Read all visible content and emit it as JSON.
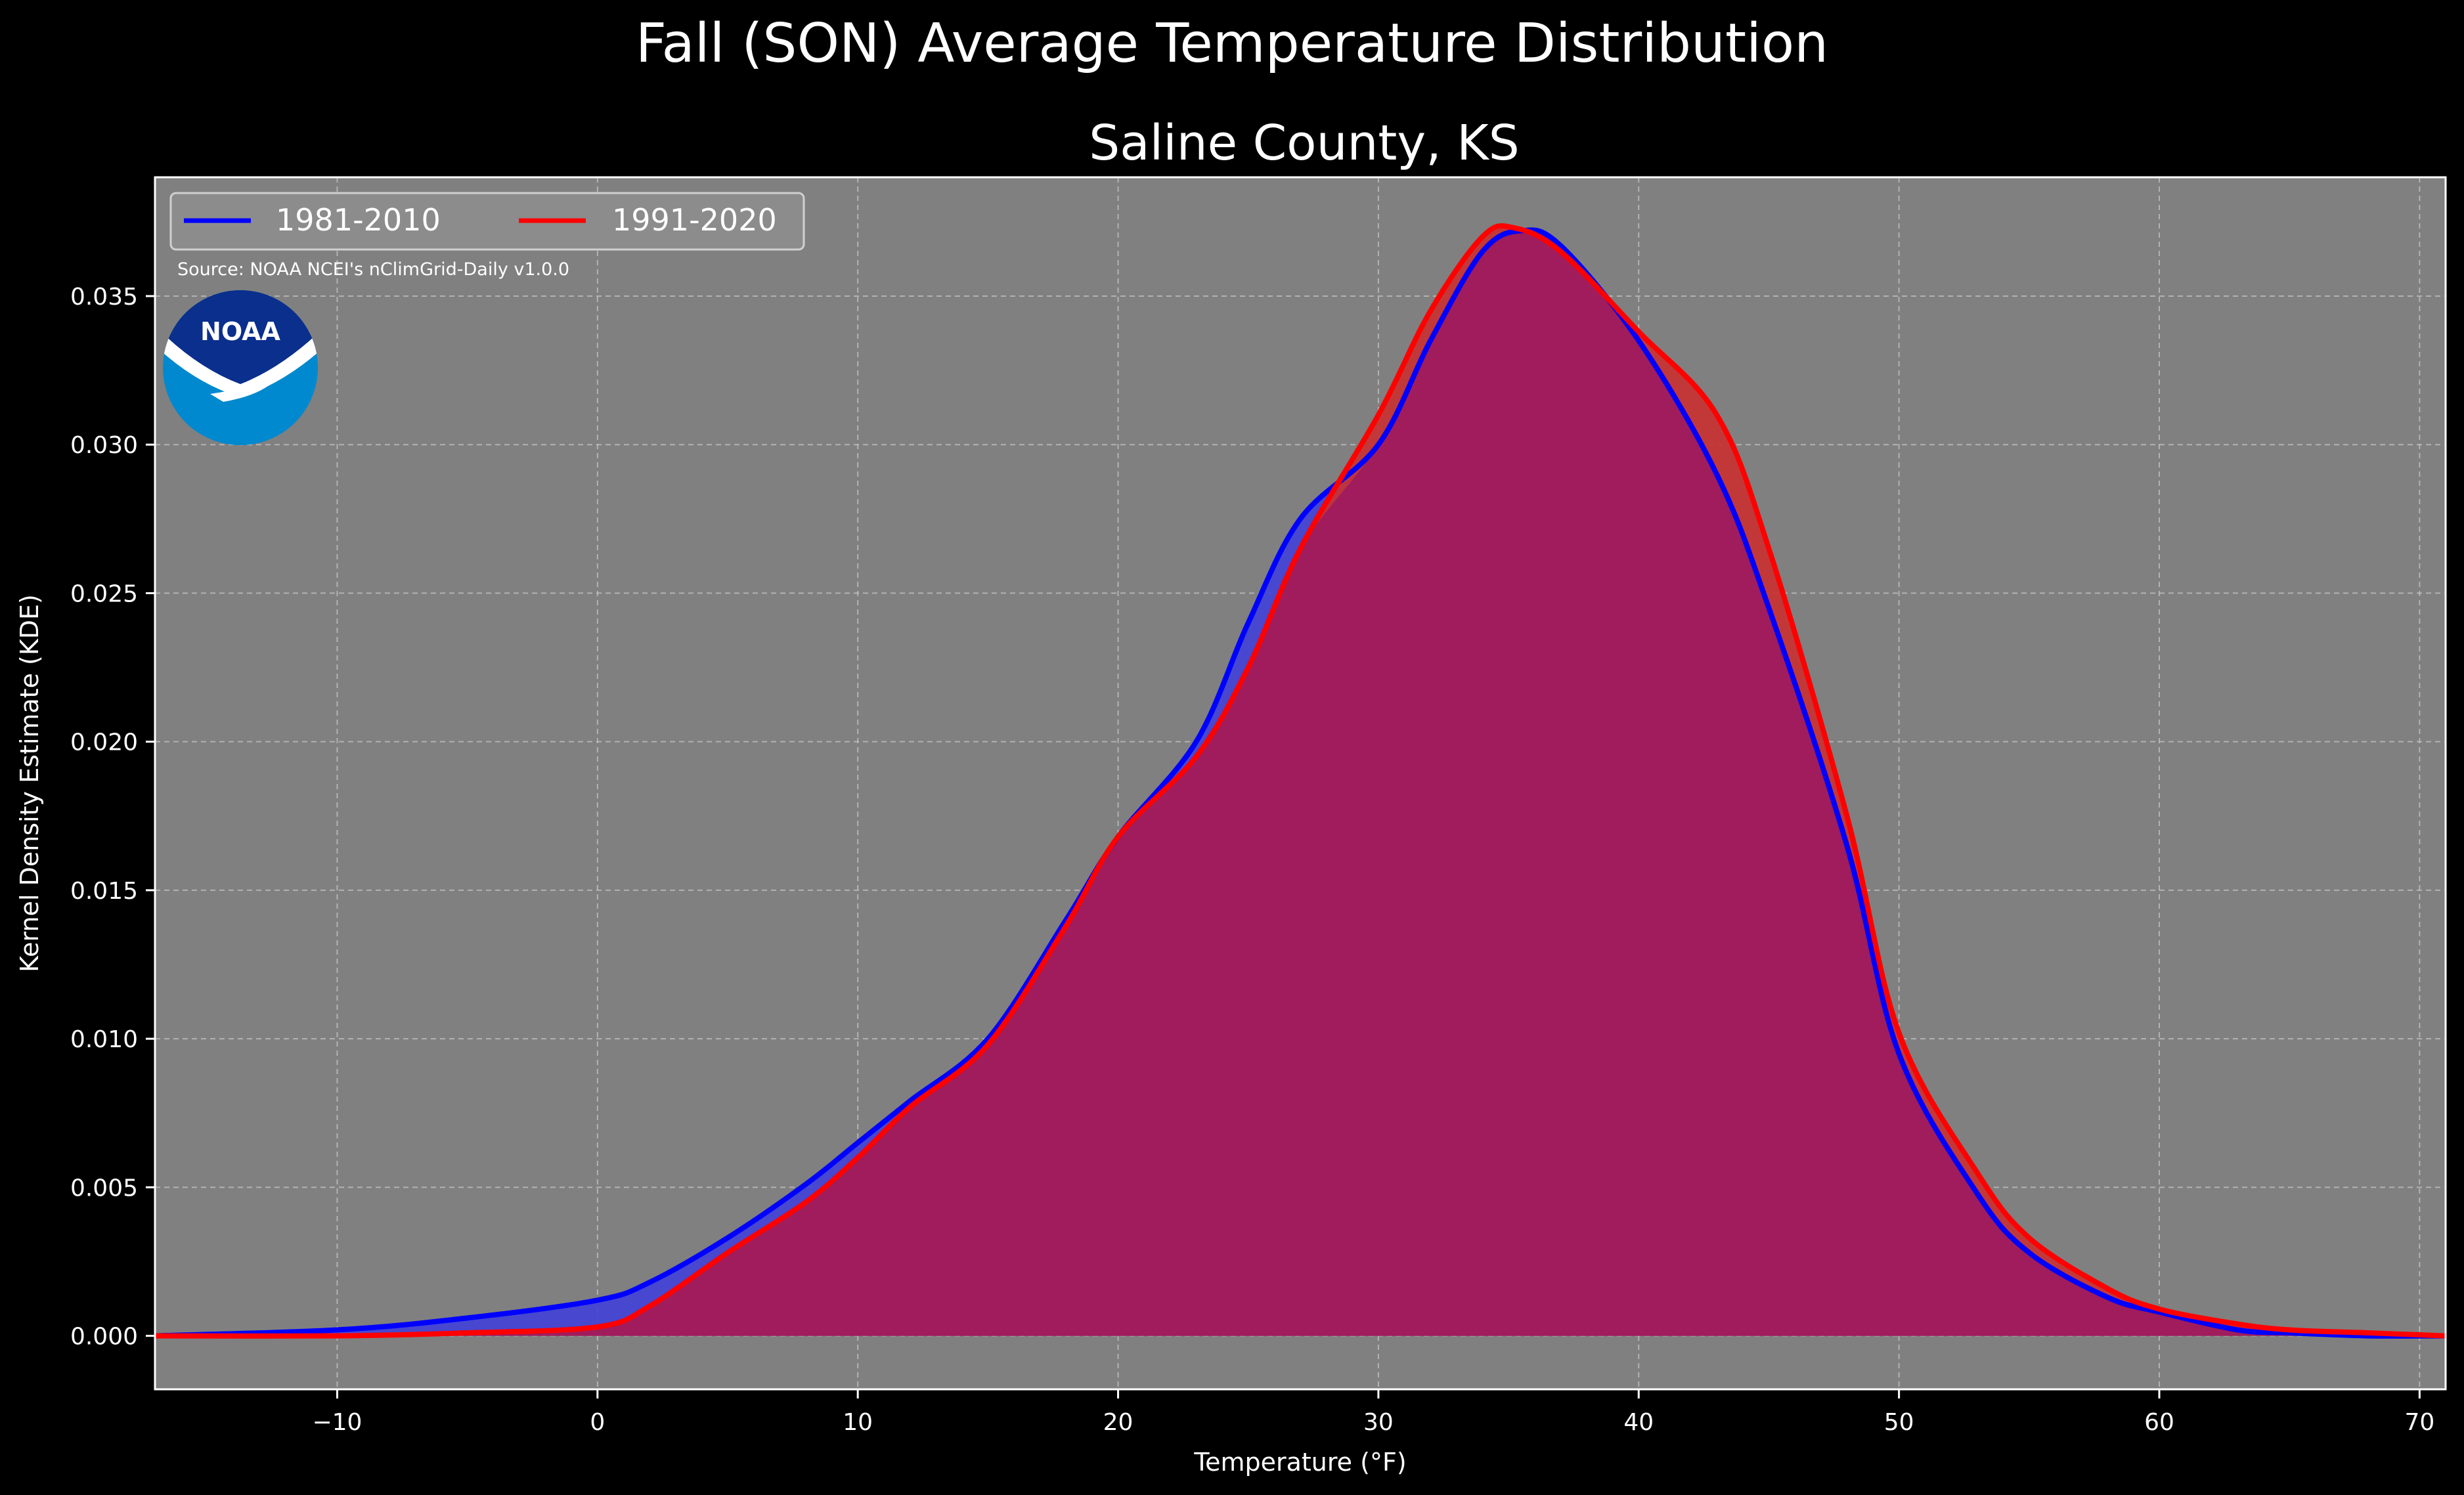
{
  "figure": {
    "title": "Fall (SON) Average Temperature Distribution",
    "subtitle": "Saline County, KS",
    "source_note": "Source: NOAA NCEI's nClimGrid-Daily v1.0.0",
    "logo_text": "NOAA",
    "colors": {
      "background": "#000000",
      "axes_face": "#808080",
      "grid": "#c8c8c8",
      "text": "#ffffff",
      "series_1981_2010": "#0000ff",
      "series_1991_2020": "#ff0000",
      "overlap_fill": "#a01c5c",
      "logo_dark": "#0a2f8c",
      "logo_light": "#0089cf"
    }
  },
  "chart_data": {
    "type": "area",
    "title": "Fall (SON) Average Temperature Distribution",
    "subtitle": "Saline County, KS",
    "xlabel": "Temperature (°F)",
    "ylabel": "Kernel Density Estimate (KDE)",
    "xlim": [
      -17,
      71
    ],
    "ylim": [
      -0.0018,
      0.039
    ],
    "xticks": [
      -10,
      0,
      10,
      20,
      30,
      40,
      50,
      60,
      70
    ],
    "xtick_labels": [
      "−10",
      "0",
      "10",
      "20",
      "30",
      "40",
      "50",
      "60",
      "70"
    ],
    "yticks": [
      0.0,
      0.005,
      0.01,
      0.015,
      0.02,
      0.025,
      0.03,
      0.035
    ],
    "ytick_labels": [
      "0.000",
      "0.005",
      "0.010",
      "0.015",
      "0.020",
      "0.025",
      "0.030",
      "0.035"
    ],
    "grid": true,
    "legend_position": "top-left",
    "series": [
      {
        "name": "1981-2010",
        "color": "#0000ff",
        "x": [
          -17,
          -10,
          -5,
          0,
          2,
          5,
          8,
          10,
          12,
          15,
          18,
          20,
          23,
          25,
          27,
          30,
          32,
          34,
          35.5,
          37,
          40,
          43,
          45,
          48,
          50,
          53,
          55,
          58,
          60,
          63,
          65,
          68,
          71
        ],
        "y": [
          0.0,
          0.0002,
          0.0006,
          0.0012,
          0.0018,
          0.0033,
          0.0051,
          0.0065,
          0.0079,
          0.01,
          0.014,
          0.0168,
          0.02,
          0.024,
          0.0275,
          0.03,
          0.0335,
          0.0365,
          0.0372,
          0.0367,
          0.0335,
          0.029,
          0.0245,
          0.0165,
          0.0095,
          0.0048,
          0.0028,
          0.0013,
          0.0008,
          0.0002,
          0.0001,
          0.0,
          0.0
        ]
      },
      {
        "name": "1991-2020",
        "color": "#ff0000",
        "x": [
          -17,
          -10,
          -5,
          0,
          2,
          5,
          8,
          10,
          12,
          15,
          18,
          20,
          23,
          25,
          27,
          30,
          32,
          34,
          35.2,
          37,
          40,
          43,
          45,
          48,
          50,
          53,
          55,
          58,
          60,
          63,
          65,
          68,
          71
        ],
        "y": [
          0.0,
          0.0,
          0.0001,
          0.0003,
          0.001,
          0.0028,
          0.0045,
          0.006,
          0.0077,
          0.0098,
          0.0138,
          0.0168,
          0.0195,
          0.0225,
          0.0265,
          0.031,
          0.0345,
          0.037,
          0.0373,
          0.0365,
          0.0338,
          0.031,
          0.0265,
          0.0175,
          0.0102,
          0.0055,
          0.0033,
          0.0016,
          0.0009,
          0.0004,
          0.0002,
          0.0001,
          0.0
        ]
      }
    ]
  }
}
